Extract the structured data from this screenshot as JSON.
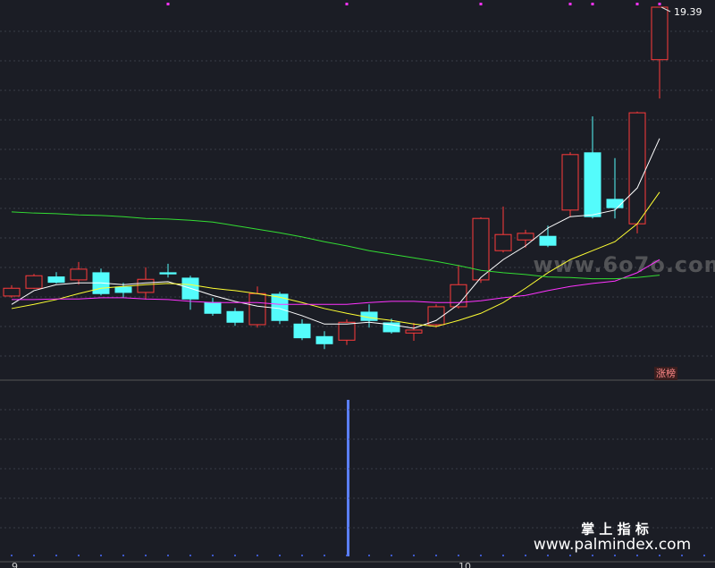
{
  "chart_data": {
    "type": "candlestick",
    "categories": [
      "9",
      null,
      null,
      null,
      null,
      null,
      null,
      null,
      null,
      null,
      null,
      null,
      null,
      null,
      null,
      null,
      null,
      null,
      null,
      null,
      "10",
      null,
      null,
      null,
      null,
      null,
      null,
      null,
      null,
      null
    ],
    "open": [
      14.55,
      14.68,
      14.87,
      14.82,
      14.94,
      14.7,
      14.61,
      14.94,
      14.85,
      14.44,
      14.29,
      14.07,
      14.58,
      14.08,
      13.87,
      13.81,
      14.28,
      14.1,
      13.93,
      14.07,
      14.37,
      14.82,
      15.31,
      15.49,
      15.55,
      15.99,
      16.95,
      16.17,
      15.76,
      18.51
    ],
    "close": [
      14.68,
      14.89,
      14.78,
      15.0,
      14.59,
      14.61,
      14.83,
      14.92,
      14.5,
      14.26,
      14.11,
      14.59,
      14.14,
      13.85,
      13.75,
      14.11,
      14.14,
      13.95,
      13.98,
      14.37,
      14.74,
      15.85,
      15.58,
      15.6,
      15.4,
      16.92,
      15.88,
      16.03,
      17.62,
      19.39
    ],
    "high": [
      14.73,
      14.92,
      14.95,
      15.12,
      15.01,
      14.77,
      15.03,
      15.09,
      14.89,
      14.52,
      14.35,
      14.71,
      14.62,
      14.16,
      13.96,
      14.16,
      14.41,
      14.17,
      14.1,
      14.41,
      15.07,
      15.87,
      16.05,
      15.66,
      15.73,
      16.96,
      17.56,
      16.86,
      17.64,
      19.39
    ],
    "low": [
      14.52,
      14.67,
      14.76,
      14.74,
      14.56,
      14.52,
      14.49,
      14.86,
      14.32,
      14.22,
      14.05,
      14.02,
      14.08,
      13.81,
      13.66,
      13.73,
      14.02,
      13.92,
      13.8,
      14.02,
      14.34,
      14.77,
      15.28,
      15.36,
      15.37,
      15.88,
      15.85,
      15.85,
      15.6,
      17.86
    ],
    "up_color": "#ff3b3b",
    "down_color": "#54fcfc",
    "series": [
      {
        "color": "#ffffff",
        "values": [
          14.41,
          14.64,
          14.74,
          14.77,
          14.77,
          14.74,
          14.77,
          14.79,
          14.68,
          14.56,
          14.46,
          14.38,
          14.34,
          14.22,
          14.08,
          14.08,
          14.11,
          14.07,
          14.01,
          14.14,
          14.41,
          14.86,
          15.16,
          15.39,
          15.69,
          15.88,
          15.91,
          15.99,
          16.36,
          17.19
        ]
      },
      {
        "color": "#ffff33",
        "values": [
          14.34,
          14.41,
          14.49,
          14.59,
          14.68,
          14.71,
          14.74,
          14.76,
          14.74,
          14.68,
          14.64,
          14.59,
          14.53,
          14.44,
          14.34,
          14.26,
          14.19,
          14.14,
          14.08,
          14.04,
          14.14,
          14.26,
          14.44,
          14.68,
          14.94,
          15.16,
          15.31,
          15.46,
          15.76,
          16.29
        ]
      },
      {
        "color": "#ff33ff",
        "values": [
          14.49,
          14.49,
          14.5,
          14.5,
          14.52,
          14.52,
          14.5,
          14.49,
          14.46,
          14.44,
          14.44,
          14.44,
          14.41,
          14.41,
          14.41,
          14.41,
          14.44,
          14.46,
          14.46,
          14.44,
          14.44,
          14.47,
          14.52,
          14.56,
          14.64,
          14.71,
          14.76,
          14.8,
          14.94,
          15.16
        ]
      },
      {
        "color": "#33dd33",
        "values": [
          15.96,
          15.94,
          15.93,
          15.91,
          15.9,
          15.88,
          15.85,
          15.84,
          15.82,
          15.79,
          15.73,
          15.67,
          15.61,
          15.54,
          15.46,
          15.39,
          15.31,
          15.25,
          15.19,
          15.13,
          15.06,
          14.98,
          14.94,
          14.91,
          14.87,
          14.86,
          14.84,
          14.84,
          14.86,
          14.9
        ]
      }
    ],
    "ylim": [
      13.14,
      19.51
    ],
    "tag": "涨榜",
    "watermark": "www.6o7o.com",
    "brand": "掌 上 指 标",
    "brand_url": "www.palmindex.com"
  }
}
